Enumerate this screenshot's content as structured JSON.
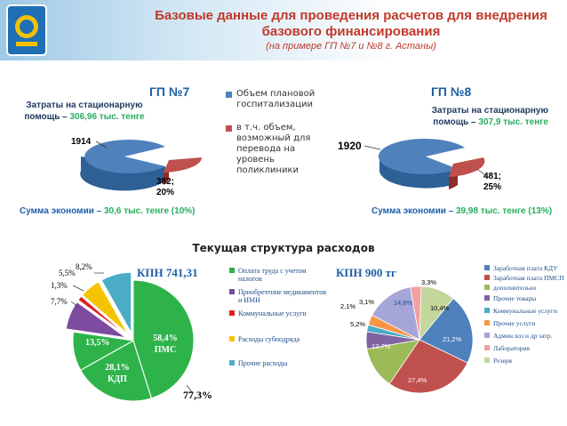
{
  "header": {
    "title": "Базовые данные для проведения расчетов для внедрения базового финансирования",
    "subtitle": "(на примере ГП №7 и №8 г. Астаны)"
  },
  "colors": {
    "blue": "#4f81bd",
    "red": "#c0504d",
    "green": "#2db34a",
    "purple": "#7d4ca0",
    "yellow": "#f5c400",
    "teal": "#4bacc6"
  },
  "gp7": {
    "heading": "ГП №7",
    "cost_label": "Затраты на стационарную помощь –",
    "cost_value": "306,96 тыс. тенге",
    "savings_label": "Сумма экономии –",
    "savings_value": "30,6 тыс. тенге (10%)"
  },
  "gp8": {
    "heading": "ГП №8",
    "cost_label": "Затраты на стационарную помощь –",
    "cost_value": "307,9 тыс. тенге",
    "savings_label": "Сумма экономии –",
    "savings_value": "39,98 тыс. тенге (13%)"
  },
  "pie_legend": [
    "Объем плановой госпитализации",
    "в т.ч. объем, возможный для перевода на уровень поликлиники"
  ],
  "section_title": "Текущая структура  расходов",
  "kpn1_title": "КПН 741,31",
  "kpn2_title": "КПН 900 тг",
  "chart_data": [
    {
      "type": "pie",
      "title": "ГП №7",
      "categories": [
        "Объем плановой госпитализации",
        "в т.ч. объем, возможный для перевода на уровень поликлиники"
      ],
      "values": [
        1914,
        382
      ],
      "labels": [
        "1914",
        "382; 20%"
      ]
    },
    {
      "type": "pie",
      "title": "ГП №8",
      "categories": [
        "Объем плановой госпитализации",
        "в т.ч. объем, возможный для перевода на уровень поликлиники"
      ],
      "values": [
        1920,
        481
      ],
      "labels": [
        "1920",
        "481; 25%"
      ]
    },
    {
      "type": "pie",
      "title": "КПН 741,31",
      "categories": [
        "Оплата труда с учетом налогов",
        "Приобретение медикаментов и ИМН",
        "Коммунальные услуги",
        "Расходы субподряда",
        "Прочие расходы"
      ],
      "values": [
        77.3,
        7.7,
        1.3,
        5.5,
        8.2
      ],
      "inner_breakdown": [
        {
          "label": "58,4% ПМС",
          "value": 58.4
        },
        {
          "label": "28,1% КДП",
          "value": 28.1
        },
        {
          "label": "13,5%",
          "value": 13.5
        }
      ],
      "labels": [
        "77,3%",
        "7,7%",
        "1,3%",
        "5,5%",
        "8,2%"
      ]
    },
    {
      "type": "pie",
      "title": "КПН 900 тг",
      "categories": [
        "Заработная плата КДУ",
        "Заработная плата ПМСП",
        "дополнительно",
        "Прочие товары",
        "Коммунальные услуги",
        "Прочие услуги",
        "Админ.хоз и др затр.",
        "Лаборатория",
        "Резерв"
      ],
      "values": [
        21.2,
        27.4,
        12.7,
        5.2,
        2.1,
        3.1,
        14.6,
        3.3,
        10.4
      ],
      "labels": [
        "21,2%",
        "27,4%",
        "12,7%",
        "5,2%",
        "2,1%",
        "3,1%",
        "14,6%",
        "3,3%",
        "10,4%"
      ]
    }
  ]
}
